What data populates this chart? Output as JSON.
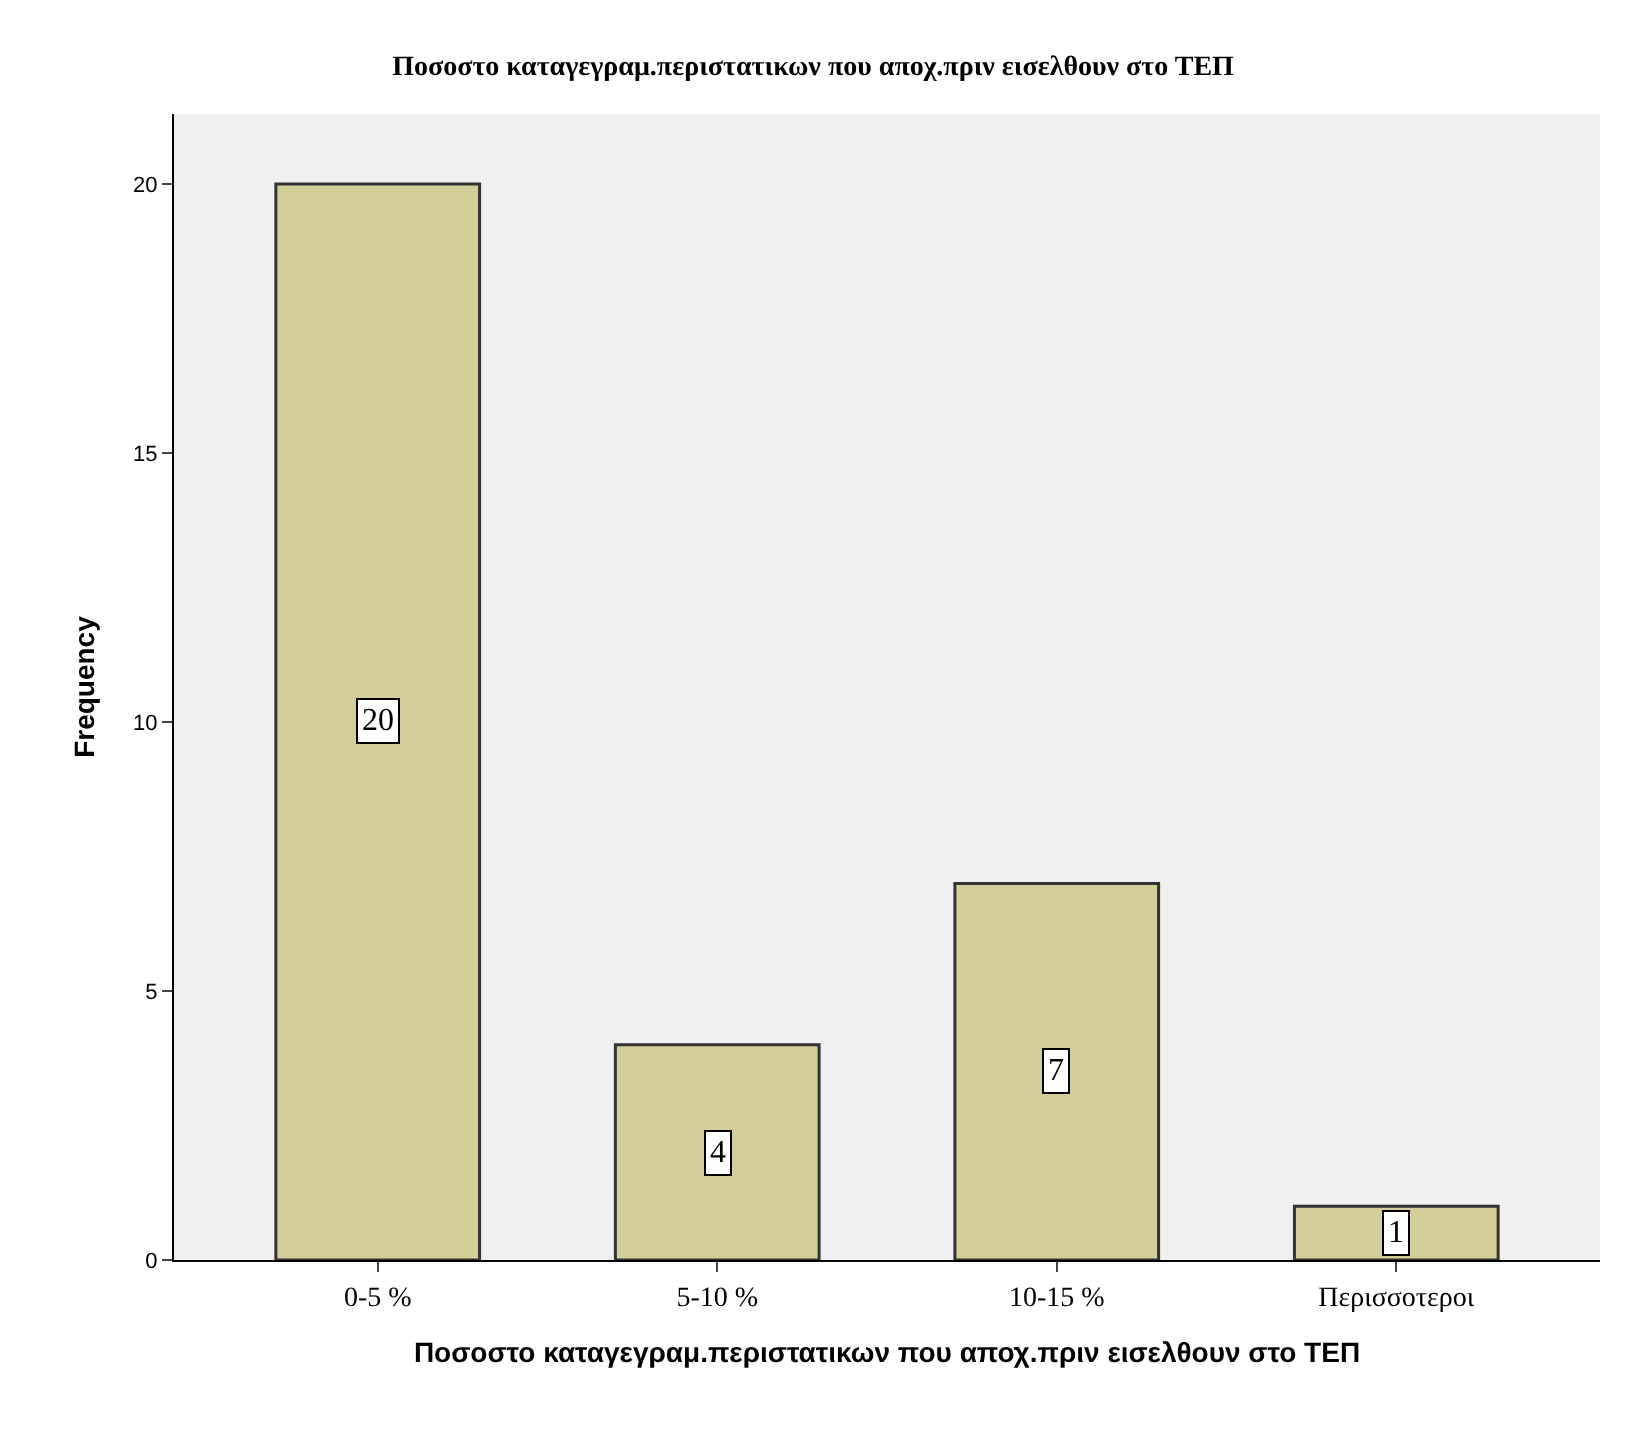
{
  "chart_data": {
    "type": "bar",
    "title": "Ποσοστο καταγεγραμ.περιστατικων που αποχ.πριν εισελθουν στο ΤΕΠ",
    "xlabel": "Ποσοστο καταγεγραμ.περιστατικων που αποχ.πριν εισελθουν στο ΤΕΠ",
    "ylabel": "Frequency",
    "categories": [
      "0-5 %",
      "5-10 %",
      "10-15 %",
      "Περισσοτεροι"
    ],
    "values": [
      20,
      4,
      7,
      1
    ],
    "color": "#d3ce97",
    "ylim": [
      0,
      21.3
    ],
    "yticks": [
      0,
      5,
      10,
      15,
      20
    ],
    "data_labels": true
  }
}
